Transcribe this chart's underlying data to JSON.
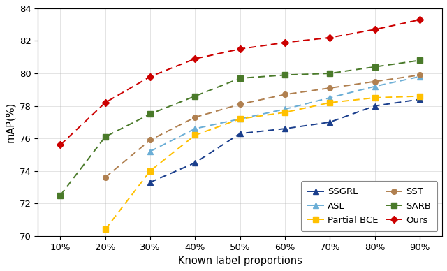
{
  "x": [
    10,
    20,
    30,
    40,
    50,
    60,
    70,
    80,
    90
  ],
  "series": {
    "SSGRL": [
      null,
      null,
      73.3,
      74.5,
      76.3,
      76.6,
      77.0,
      78.0,
      78.4
    ],
    "ASL": [
      null,
      null,
      75.2,
      76.6,
      77.2,
      77.8,
      78.5,
      79.2,
      79.8
    ],
    "Partial BCE": [
      null,
      70.4,
      74.0,
      76.2,
      77.2,
      77.6,
      78.2,
      78.5,
      78.6
    ],
    "SST": [
      null,
      73.6,
      75.9,
      77.3,
      78.1,
      78.7,
      79.1,
      79.5,
      79.9
    ],
    "SARB": [
      72.5,
      76.1,
      77.5,
      78.6,
      79.7,
      79.9,
      80.0,
      80.4,
      80.8
    ],
    "Ours": [
      75.6,
      78.2,
      79.8,
      80.9,
      81.5,
      81.9,
      82.2,
      82.7,
      83.3
    ]
  },
  "colors": {
    "SSGRL": "#1a3e8c",
    "ASL": "#6baed6",
    "Partial BCE": "#ffc000",
    "SST": "#b08050",
    "SARB": "#4a7a2a",
    "Ours": "#cc0000"
  },
  "markers": {
    "SSGRL": "^",
    "ASL": "^",
    "Partial BCE": "s",
    "SST": "o",
    "SARB": "s",
    "Ours": "D"
  },
  "legend_order": [
    [
      "SSGRL",
      "ASL"
    ],
    [
      "Partial BCE",
      "SST"
    ],
    [
      "SARB",
      "Ours"
    ]
  ],
  "xlabel": "Known label proportions",
  "ylabel": "mAP(%)",
  "ylim": [
    70,
    84
  ],
  "xlim": [
    5,
    95
  ],
  "yticks": [
    70,
    72,
    74,
    76,
    78,
    80,
    82,
    84
  ],
  "xticks": [
    10,
    20,
    30,
    40,
    50,
    60,
    70,
    80,
    90
  ],
  "figsize": [
    6.4,
    3.88
  ],
  "dpi": 100
}
